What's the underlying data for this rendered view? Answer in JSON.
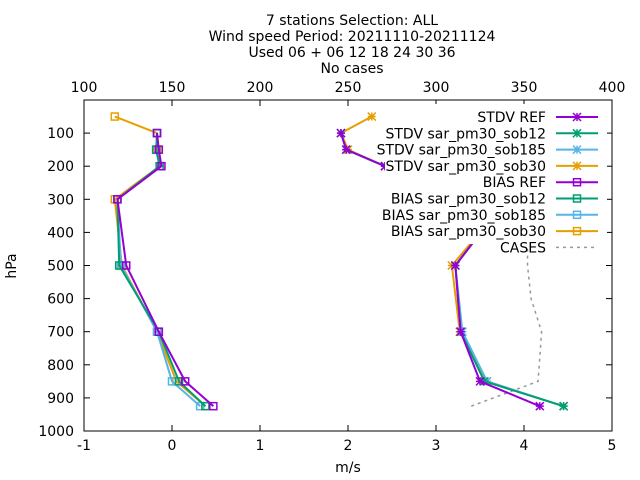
{
  "chart_data": {
    "type": "line",
    "title_lines": [
      "7 stations Selection: ALL",
      "Wind speed  Period: 20211110-20211124",
      "Used 06 + 06 12 18 24 30 36",
      "No cases"
    ],
    "xlabel": "m/s",
    "ylabel": "hPa",
    "xlim": [
      -1,
      5
    ],
    "ylim": [
      1000,
      0
    ],
    "x2lim": [
      100,
      400
    ],
    "xticks": [
      "-1",
      "0",
      "1",
      "2",
      "3",
      "4",
      "5"
    ],
    "x2ticks": [
      "100",
      "150",
      "200",
      "250",
      "300",
      "350",
      "400"
    ],
    "yticks": [
      "100",
      "200",
      "300",
      "400",
      "500",
      "600",
      "700",
      "800",
      "900",
      "1000"
    ],
    "legend_position": "top-right",
    "levels": [
      50,
      100,
      150,
      200,
      300,
      500,
      700,
      850,
      925
    ],
    "series": [
      {
        "name": "STDV REF",
        "axis": "x1",
        "marker": "star",
        "color": "#9400d3",
        "values": [
          null,
          1.92,
          1.98,
          2.42,
          3.8,
          3.22,
          3.28,
          3.5,
          4.18
        ]
      },
      {
        "name": "STDV sar_pm30_sob12",
        "axis": "x1",
        "marker": "star",
        "color": "#009e73",
        "values": [
          null,
          1.92,
          1.98,
          2.42,
          3.8,
          3.22,
          3.28,
          3.55,
          4.45
        ]
      },
      {
        "name": "STDV sar_pm30_sob185",
        "axis": "x1",
        "marker": "star",
        "color": "#56b4e9",
        "values": [
          null,
          1.92,
          1.98,
          2.42,
          3.8,
          3.22,
          3.3,
          3.58,
          4.45
        ]
      },
      {
        "name": "STDV sar_pm30_sob30",
        "axis": "x1",
        "marker": "star",
        "color": "#e69f00",
        "values": [
          2.27,
          1.92,
          2.0,
          2.42,
          3.82,
          3.18,
          3.27,
          3.58,
          4.45
        ]
      },
      {
        "name": "BIAS REF",
        "axis": "x1",
        "marker": "square",
        "color": "#9400d3",
        "values": [
          null,
          -0.17,
          -0.15,
          -0.12,
          -0.62,
          -0.52,
          -0.15,
          0.15,
          0.47
        ]
      },
      {
        "name": "BIAS sar_pm30_sob12",
        "axis": "x1",
        "marker": "square",
        "color": "#009e73",
        "values": [
          null,
          -0.17,
          -0.18,
          -0.14,
          -0.62,
          -0.6,
          -0.15,
          0.08,
          0.38
        ]
      },
      {
        "name": "BIAS sar_pm30_sob185",
        "axis": "x1",
        "marker": "square",
        "color": "#56b4e9",
        "values": [
          null,
          -0.17,
          -0.18,
          -0.14,
          -0.62,
          -0.58,
          -0.17,
          0.0,
          0.32
        ]
      },
      {
        "name": "BIAS sar_pm30_sob30",
        "axis": "x1",
        "marker": "square",
        "color": "#e69f00",
        "values": [
          -0.65,
          -0.17,
          -0.17,
          -0.14,
          -0.65,
          -0.57,
          -0.17,
          0.05,
          0.38
        ]
      },
      {
        "name": "CASES",
        "axis": "x2",
        "marker": "none",
        "color": "#999999",
        "dashed": true,
        "points": [
          [
            320,
            925
          ],
          [
            358,
            850
          ],
          [
            360,
            700
          ],
          [
            354,
            600
          ],
          [
            352,
            500
          ],
          [
            352,
            450
          ]
        ]
      }
    ]
  }
}
